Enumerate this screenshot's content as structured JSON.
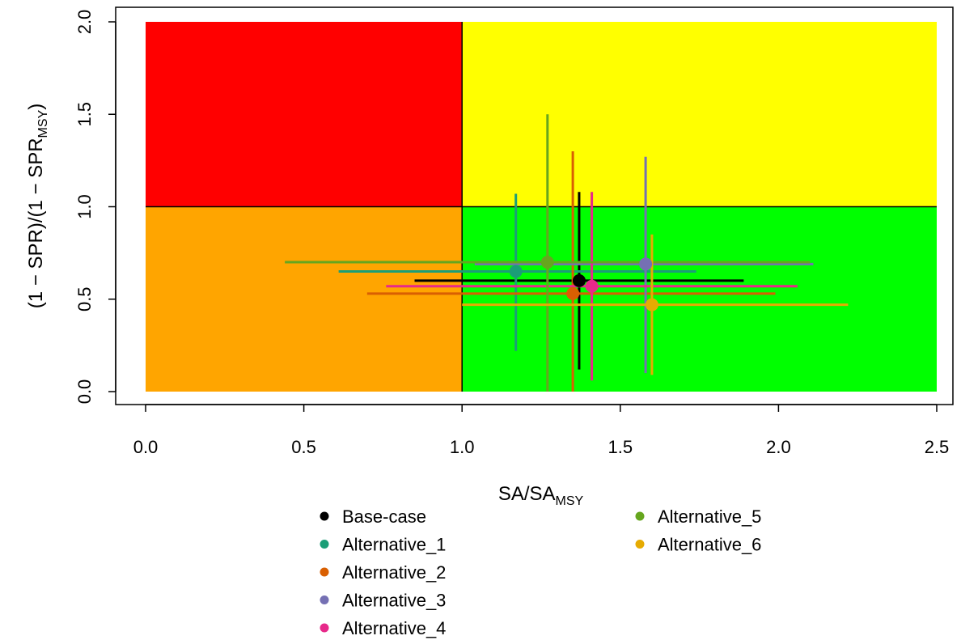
{
  "chart_data": {
    "type": "scatter",
    "xlabel": {
      "main": "SA/SA",
      "sub": "MSY"
    },
    "ylabel": {
      "main": "(1 − SPR)/(1 − SPR",
      "sub": "MSY",
      "close": ")"
    },
    "xlim": [
      0.0,
      2.5
    ],
    "ylim": [
      0.0,
      2.0
    ],
    "x_ticks": [
      "0.0",
      "0.5",
      "1.0",
      "1.5",
      "2.0",
      "2.5"
    ],
    "y_ticks": [
      "0.0",
      "0.5",
      "1.0",
      "1.5",
      "2.0"
    ],
    "grid": false,
    "legend_position": "bottom",
    "quadrants": [
      {
        "name": "upper-left",
        "x": [
          0.0,
          1.0
        ],
        "y": [
          1.0,
          2.0
        ],
        "color": "#ff0000"
      },
      {
        "name": "upper-right",
        "x": [
          1.0,
          2.5
        ],
        "y": [
          1.0,
          2.0
        ],
        "color": "#ffff00"
      },
      {
        "name": "lower-left",
        "x": [
          0.0,
          1.0
        ],
        "y": [
          0.0,
          1.0
        ],
        "color": "#ffa500"
      },
      {
        "name": "lower-right",
        "x": [
          1.0,
          2.5
        ],
        "y": [
          0.0,
          1.0
        ],
        "color": "#00ff00"
      }
    ],
    "series": [
      {
        "name": "Base-case",
        "color": "#000000",
        "x": 1.37,
        "y": 0.6,
        "x_range": [
          0.85,
          1.89
        ],
        "y_range": [
          0.12,
          1.08
        ]
      },
      {
        "name": "Alternative_1",
        "color": "#1b9e77",
        "x": 1.17,
        "y": 0.65,
        "x_range": [
          0.61,
          1.74
        ],
        "y_range": [
          0.22,
          1.07
        ]
      },
      {
        "name": "Alternative_2",
        "color": "#d95f02",
        "x": 1.35,
        "y": 0.53,
        "x_range": [
          0.7,
          1.99
        ],
        "y_range": [
          0.0,
          1.3
        ]
      },
      {
        "name": "Alternative_3",
        "color": "#7570b3",
        "x": 1.58,
        "y": 0.69,
        "x_range": [
          1.04,
          2.11
        ],
        "y_range": [
          0.1,
          1.27
        ]
      },
      {
        "name": "Alternative_4",
        "color": "#e7298a",
        "x": 1.41,
        "y": 0.57,
        "x_range": [
          0.76,
          2.06
        ],
        "y_range": [
          0.06,
          1.08
        ]
      },
      {
        "name": "Alternative_5",
        "color": "#66a61e",
        "x": 1.27,
        "y": 0.7,
        "x_range": [
          0.44,
          2.1
        ],
        "y_range": [
          0.0,
          1.5
        ]
      },
      {
        "name": "Alternative_6",
        "color": "#e6ab02",
        "x": 1.6,
        "y": 0.47,
        "x_range": [
          1.0,
          2.22
        ],
        "y_range": [
          0.09,
          0.85
        ]
      }
    ]
  }
}
